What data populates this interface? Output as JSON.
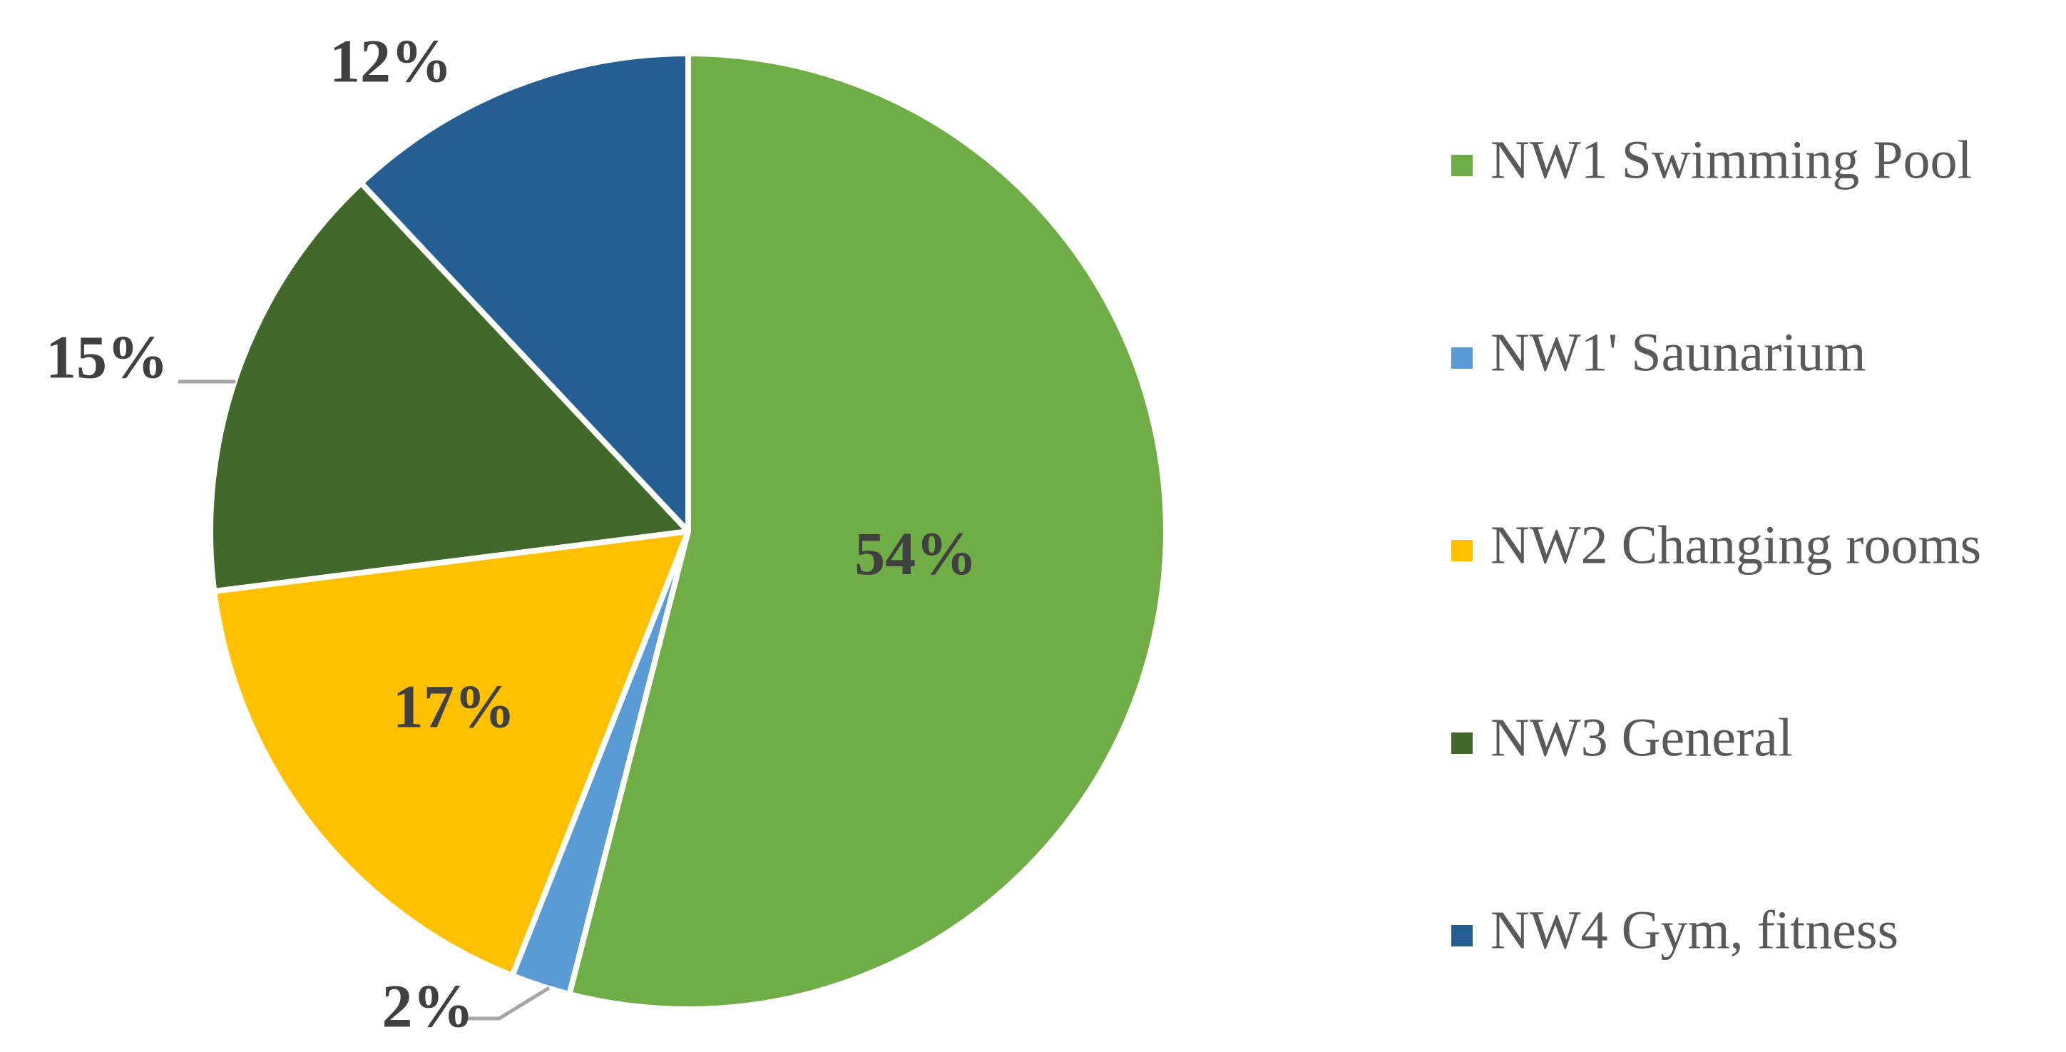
{
  "chart_data": {
    "type": "pie",
    "title": "",
    "series": [
      {
        "categories": [
          "NW1 Swimming Pool",
          "NW1' Saunarium",
          "NW2 Changing rooms",
          "NW3 General",
          "NW4 Gym, fitness"
        ],
        "values": [
          54,
          2,
          17,
          15,
          12
        ],
        "labels": [
          "54%",
          "2%",
          "17%",
          "15%",
          "12%"
        ],
        "colors": [
          "#70AD47",
          "#5B9BD5",
          "#FFC000",
          "#43682B",
          "#255E91"
        ]
      }
    ],
    "legend": {
      "position": "right",
      "items": [
        {
          "label": "NW1 Swimming Pool",
          "color": "#70AD47"
        },
        {
          "label": "NW1' Saunarium",
          "color": "#5B9BD5"
        },
        {
          "label": "NW2 Changing rooms",
          "color": "#FFC000"
        },
        {
          "label": "NW3 General",
          "color": "#43682B"
        },
        {
          "label": "NW4 Gym, fitness",
          "color": "#255E91"
        }
      ]
    }
  }
}
